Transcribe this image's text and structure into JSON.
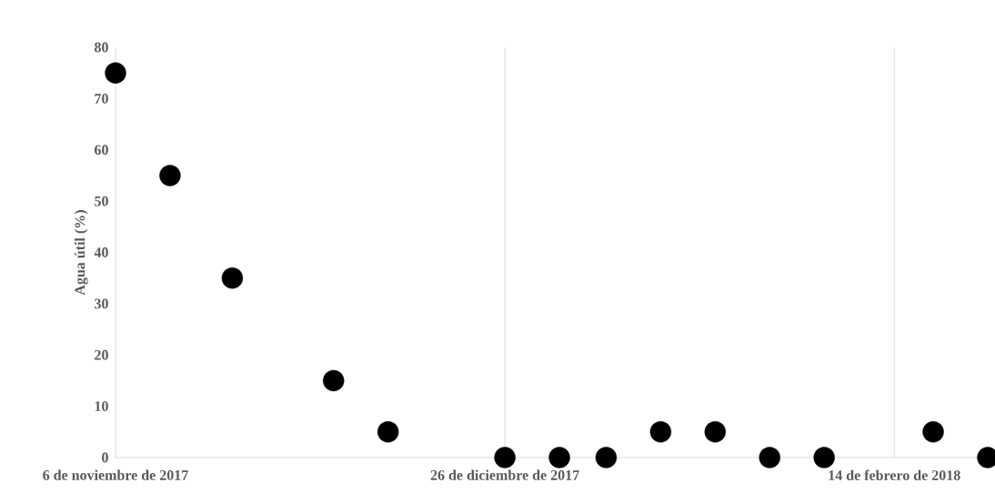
{
  "chart_data": {
    "type": "scatter",
    "ylabel": "Agua útil (%)",
    "x": [
      "2017-11-06",
      "2017-11-13",
      "2017-11-21",
      "2017-12-04",
      "2017-12-11",
      "2017-12-26",
      "2018-01-02",
      "2018-01-08",
      "2018-01-15",
      "2018-01-22",
      "2018-01-29",
      "2018-02-05",
      "2018-02-19",
      "2018-02-26"
    ],
    "series": [
      {
        "color": "#000000",
        "values": [
          75,
          55,
          35,
          15,
          5,
          0,
          0,
          0,
          5,
          5,
          0,
          0,
          5,
          0
        ]
      }
    ],
    "xlim": [
      "2017-11-06",
      "2018-02-26"
    ],
    "xticks": [
      {
        "value": "2017-11-06",
        "label": "6 de noviembre de 2017"
      },
      {
        "value": "2017-12-26",
        "label": "26 de diciembre de 2017"
      },
      {
        "value": "2018-02-14",
        "label": "14 de febrero de 2018"
      }
    ],
    "ylim": [
      0,
      80
    ],
    "yticks": [
      0,
      10,
      20,
      30,
      40,
      50,
      60,
      70,
      80
    ],
    "grid": "x",
    "marker": "circle"
  }
}
